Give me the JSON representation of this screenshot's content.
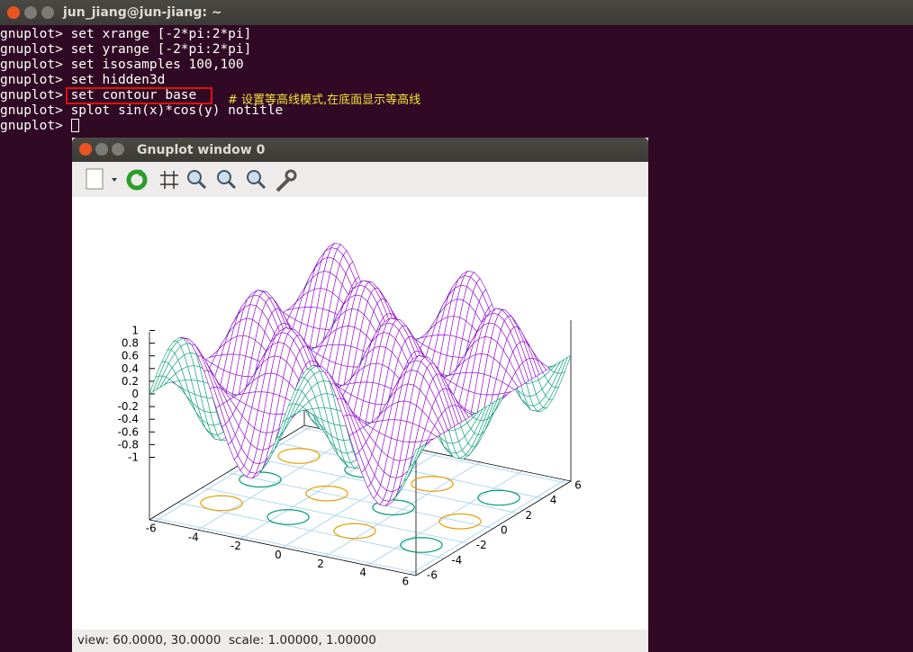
{
  "terminal": {
    "title": "jun_jiang@jun-jiang: ~",
    "lines": [
      {
        "prompt": "gnuplot>",
        "command": "set xrange [-2*pi:2*pi]"
      },
      {
        "prompt": "gnuplot>",
        "command": "set yrange [-2*pi:2*pi]"
      },
      {
        "prompt": "gnuplot>",
        "command": "set isosamples 100,100"
      },
      {
        "prompt": "gnuplot>",
        "command": "set hidden3d"
      },
      {
        "prompt": "gnuplot>",
        "command": "set contour base"
      },
      {
        "prompt": "gnuplot>",
        "command": "splot sin(x)*cos(y) notitle"
      },
      {
        "prompt": "gnuplot>",
        "command": ""
      }
    ],
    "comment": "# 设置等高线模式,在底面显示等高线"
  },
  "plot_window": {
    "title": "Gnuplot window 0",
    "status": "view: 60.0000, 30.0000  scale: 1.00000, 1.00000",
    "zticks": [
      1,
      0.8,
      0.6,
      0.4,
      0.2,
      0,
      -0.2,
      -0.4,
      -0.6,
      -0.8,
      -1
    ],
    "xticks": [
      -6,
      -4,
      -2,
      0,
      2,
      4,
      6
    ],
    "yticks": [
      -6,
      -4,
      -2,
      0,
      2,
      4,
      6
    ]
  }
}
